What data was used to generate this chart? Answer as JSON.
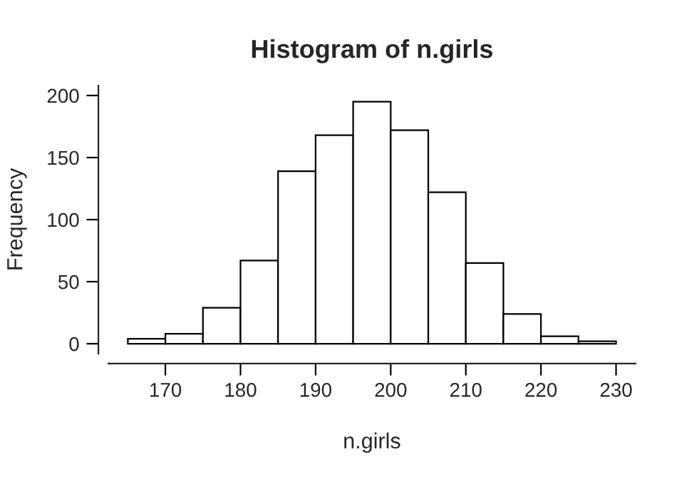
{
  "chart_data": {
    "type": "histogram",
    "title": "Histogram of n.girls",
    "xlabel": "n.girls",
    "ylabel": "Frequency",
    "bins": [
      165,
      170,
      175,
      180,
      185,
      190,
      195,
      200,
      205,
      210,
      215,
      220,
      225,
      230
    ],
    "values": [
      4,
      8,
      29,
      67,
      139,
      168,
      195,
      172,
      122,
      65,
      24,
      6,
      2
    ],
    "color": "#ffffff",
    "xlim": [
      162.4,
      232.6
    ],
    "xticks": [
      170,
      180,
      190,
      200,
      210,
      220,
      230
    ],
    "ylim": [
      -8,
      208
    ],
    "yticks": [
      0,
      50,
      100,
      150,
      200
    ],
    "grid": false
  }
}
